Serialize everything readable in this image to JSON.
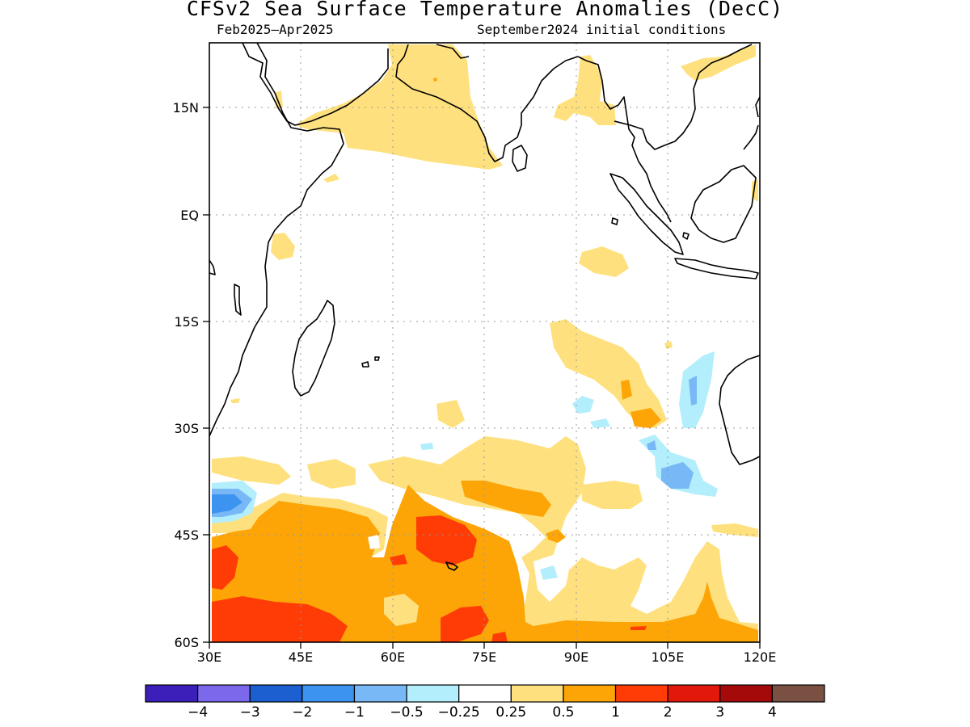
{
  "title": "CFSv2 Sea Surface Temperature Anomalies (DecC)",
  "period": "Feb2025–Apr2025",
  "init": "September2024 initial conditions",
  "lat_labels": [
    "15N",
    "EQ",
    "15S",
    "30S",
    "45S",
    "60S"
  ],
  "lon_labels": [
    "30E",
    "45E",
    "60E",
    "75E",
    "90E",
    "105E",
    "120E"
  ],
  "colorbar": {
    "colors": [
      "#3b1fb8",
      "#7b68ea",
      "#1c5fd0",
      "#3c94f0",
      "#78b8f6",
      "#b2eefb",
      "#ffffff",
      "#fee17e",
      "#fda407",
      "#ff3c06",
      "#e2180a",
      "#a50a0a",
      "#7a5043"
    ],
    "labels": [
      "−4",
      "−3",
      "−2",
      "−1",
      "−0.5",
      "−0.25",
      "0.25",
      "0.5",
      "1",
      "2",
      "3",
      "4"
    ]
  }
}
